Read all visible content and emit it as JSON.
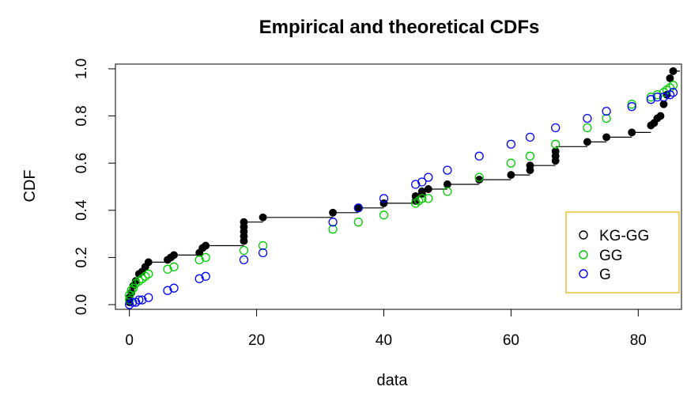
{
  "chart_data": {
    "type": "scatter",
    "title": "Empirical and theoretical CDFs",
    "xlabel": "data",
    "ylabel": "CDF",
    "xlim": [
      -2.2,
      86.8
    ],
    "ylim": [
      -0.02,
      1.02
    ],
    "xticks": [
      0,
      20,
      40,
      60,
      80
    ],
    "xtick_labels": [
      "0",
      "20",
      "40",
      "60",
      "80"
    ],
    "yticks": [
      0.0,
      0.2,
      0.4,
      0.6,
      0.8,
      1.0
    ],
    "ytick_labels": [
      "0.0",
      "0.2",
      "0.4",
      "0.6",
      "0.8",
      "1.0"
    ],
    "legend_position": "right",
    "legend_border_color": "#e8b000",
    "empirical_step": {
      "x": [
        0,
        0,
        0.3,
        0.6,
        1,
        1.5,
        2,
        2.5,
        3,
        6,
        7,
        11,
        11.5,
        12,
        18,
        21,
        32,
        36,
        40,
        45,
        46,
        47,
        50,
        55,
        60,
        63,
        67,
        72,
        75,
        79,
        82,
        82.5,
        83,
        83.5,
        84,
        85,
        85.5
      ],
      "y": [
        0.01,
        0.03,
        0.05,
        0.08,
        0.1,
        0.13,
        0.14,
        0.16,
        0.18,
        0.19,
        0.21,
        0.22,
        0.24,
        0.25,
        0.35,
        0.37,
        0.39,
        0.41,
        0.43,
        0.46,
        0.48,
        0.49,
        0.51,
        0.53,
        0.55,
        0.59,
        0.67,
        0.69,
        0.71,
        0.73,
        0.76,
        0.77,
        0.79,
        0.8,
        0.89,
        0.96,
        0.99
      ]
    },
    "series": [
      {
        "name": "KG-GG",
        "color": "#000000",
        "x": [
          0,
          0,
          0.3,
          0.6,
          1,
          1.5,
          2,
          2.5,
          3,
          6,
          6.5,
          7,
          11,
          11.5,
          12,
          18,
          18,
          18,
          18,
          18,
          21,
          32,
          36,
          40,
          45,
          45,
          46,
          46,
          47,
          50,
          55,
          60,
          63,
          63,
          67,
          67,
          67,
          72,
          75,
          79,
          82,
          82.5,
          83,
          83.5,
          84,
          84.5,
          85,
          85.5
        ],
        "y": [
          0.01,
          0.03,
          0.05,
          0.08,
          0.1,
          0.13,
          0.14,
          0.16,
          0.18,
          0.19,
          0.2,
          0.21,
          0.22,
          0.24,
          0.25,
          0.27,
          0.29,
          0.31,
          0.33,
          0.35,
          0.37,
          0.39,
          0.41,
          0.43,
          0.44,
          0.46,
          0.47,
          0.48,
          0.49,
          0.51,
          0.53,
          0.55,
          0.57,
          0.59,
          0.61,
          0.63,
          0.65,
          0.69,
          0.71,
          0.73,
          0.76,
          0.77,
          0.79,
          0.8,
          0.85,
          0.89,
          0.96,
          0.99
        ]
      },
      {
        "name": "GG",
        "color": "#00cc00",
        "x": [
          0,
          0,
          0.3,
          0.6,
          1,
          1.5,
          2,
          2.5,
          3,
          6,
          7,
          11,
          12,
          18,
          21,
          32,
          36,
          40,
          45,
          45.5,
          46,
          47,
          50,
          55,
          60,
          63,
          67,
          72,
          75,
          79,
          82,
          83,
          84,
          84.5,
          85,
          85.5
        ],
        "y": [
          0.02,
          0.04,
          0.06,
          0.07,
          0.09,
          0.1,
          0.11,
          0.12,
          0.13,
          0.15,
          0.16,
          0.19,
          0.2,
          0.23,
          0.25,
          0.32,
          0.35,
          0.38,
          0.43,
          0.44,
          0.45,
          0.45,
          0.48,
          0.54,
          0.6,
          0.63,
          0.68,
          0.75,
          0.79,
          0.85,
          0.88,
          0.89,
          0.9,
          0.91,
          0.92,
          0.93
        ]
      },
      {
        "name": "G",
        "color": "#0000ff",
        "x": [
          0,
          0.5,
          1,
          1.5,
          2,
          3,
          6,
          7,
          11,
          12,
          18,
          21,
          32,
          36,
          40,
          45,
          46,
          47,
          50,
          55,
          60,
          63,
          67,
          72,
          75,
          79,
          82,
          83,
          84,
          85,
          85.5
        ],
        "y": [
          0.0,
          0.01,
          0.01,
          0.02,
          0.02,
          0.03,
          0.06,
          0.07,
          0.11,
          0.12,
          0.19,
          0.22,
          0.35,
          0.41,
          0.45,
          0.51,
          0.52,
          0.54,
          0.57,
          0.63,
          0.68,
          0.71,
          0.75,
          0.79,
          0.82,
          0.84,
          0.87,
          0.88,
          0.88,
          0.89,
          0.9
        ]
      }
    ]
  }
}
